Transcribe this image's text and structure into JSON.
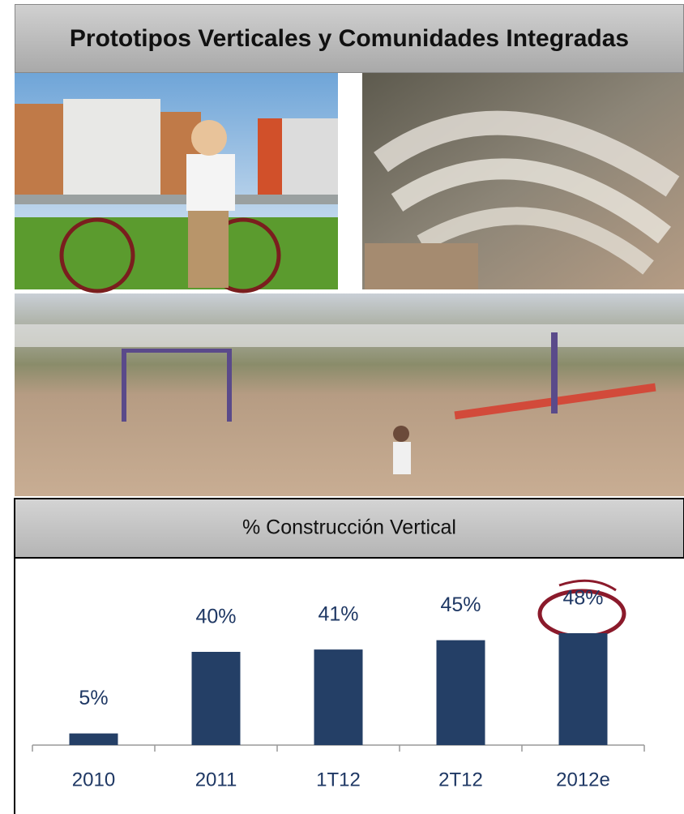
{
  "header": {
    "title": "Prototipos Verticales y Comunidades Integradas"
  },
  "chart_data": {
    "type": "bar",
    "title": "% Construcción Vertical",
    "categories": [
      "2010",
      "2011",
      "1T12",
      "2T12",
      "2012e"
    ],
    "values": [
      5,
      40,
      41,
      45,
      48
    ],
    "value_labels": [
      "5%",
      "40%",
      "41%",
      "45%",
      "48%"
    ],
    "color": "#243f66"
  }
}
